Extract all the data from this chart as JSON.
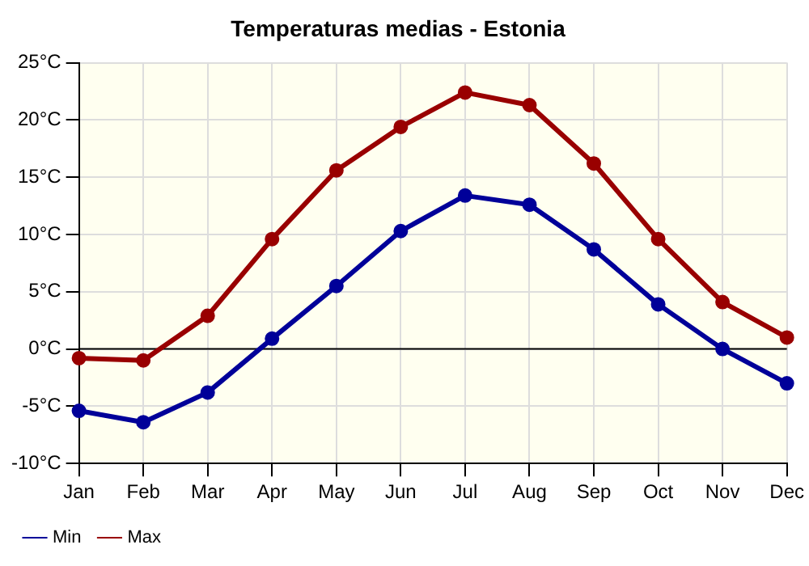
{
  "chart_data": {
    "type": "line",
    "title": "Temperaturas medias - Estonia",
    "categories": [
      "Jan",
      "Feb",
      "Mar",
      "Apr",
      "May",
      "Jun",
      "Jul",
      "Aug",
      "Sep",
      "Oct",
      "Nov",
      "Dec"
    ],
    "series": [
      {
        "name": "Min",
        "color": "#000099",
        "values": [
          -5.4,
          -6.4,
          -3.8,
          0.9,
          5.5,
          10.3,
          13.4,
          12.6,
          8.7,
          3.9,
          0.0,
          -3.0
        ]
      },
      {
        "name": "Max",
        "color": "#990000",
        "values": [
          -0.8,
          -1.0,
          2.9,
          9.6,
          15.6,
          19.4,
          22.4,
          21.3,
          16.2,
          9.6,
          4.1,
          1.0
        ]
      }
    ],
    "ylim": [
      -10,
      25
    ],
    "yticks": [
      {
        "value": -10,
        "label": "-10°C"
      },
      {
        "value": -5,
        "label": "-5°C"
      },
      {
        "value": 0,
        "label": "0°C"
      },
      {
        "value": 5,
        "label": "5°C"
      },
      {
        "value": 10,
        "label": "10°C"
      },
      {
        "value": 15,
        "label": "15°C"
      },
      {
        "value": 20,
        "label": "20°C"
      },
      {
        "value": 25,
        "label": "25°C"
      }
    ],
    "ref_lines": [
      {
        "axis": "y",
        "value": 0,
        "color": "#000000"
      }
    ],
    "grid": true,
    "legend": "bottom left",
    "marker": "circle",
    "line_style": "solid"
  }
}
